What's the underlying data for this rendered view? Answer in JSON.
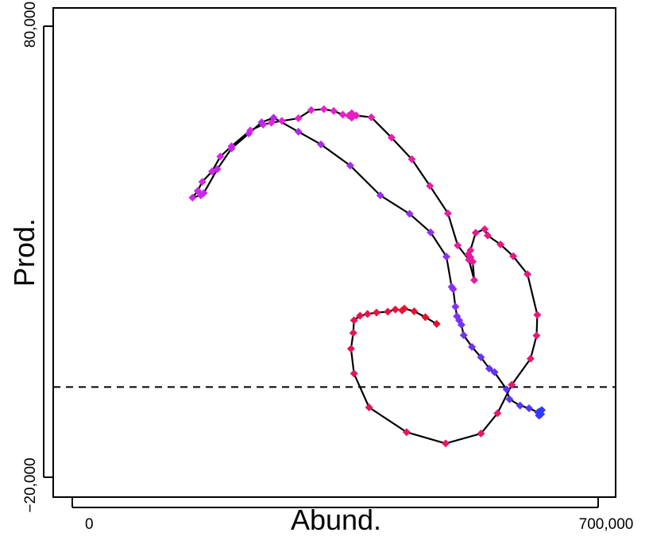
{
  "chart_data": {
    "type": "scatter",
    "title": "",
    "xlabel": "Abund.",
    "ylabel": "Prod.",
    "xlim": [
      -4000,
      700000
    ],
    "ylim": [
      -20000,
      80000
    ],
    "x_ticks": [
      0,
      700000
    ],
    "x_tick_labels": [
      "0",
      "700,000"
    ],
    "y_ticks": [
      -20000,
      80000
    ],
    "y_tick_labels": [
      "−20,000",
      "80,000"
    ],
    "reference_line": {
      "y": 0,
      "style": "dashed"
    },
    "grid": false,
    "legend": "none",
    "connected": true,
    "colors": {
      "start": "#e8102a",
      "middle": "#e524e6",
      "end": "#2a3cff",
      "line": "#000000"
    },
    "series": [
      {
        "points": [
          [
            485000,
            14000
          ],
          [
            470000,
            15500
          ],
          [
            455000,
            16800
          ],
          [
            442000,
            17400
          ],
          [
            439000,
            17000
          ],
          [
            430000,
            17200
          ],
          [
            420000,
            16700
          ],
          [
            405000,
            16500
          ],
          [
            393000,
            16200
          ],
          [
            383000,
            15800
          ],
          [
            375000,
            14800
          ],
          [
            374000,
            12000
          ],
          [
            371000,
            8500
          ],
          [
            375000,
            3000
          ],
          [
            395000,
            -4500
          ],
          [
            445000,
            -10000
          ],
          [
            497000,
            -12500
          ],
          [
            544000,
            -10300
          ],
          [
            566000,
            -5800
          ],
          [
            585000,
            500
          ],
          [
            610000,
            6300
          ],
          [
            618000,
            11400
          ],
          [
            619000,
            16000
          ],
          [
            606000,
            25000
          ],
          [
            587000,
            29000
          ],
          [
            570000,
            31600
          ],
          [
            553000,
            33600
          ],
          [
            549000,
            35000
          ],
          [
            537000,
            34200
          ],
          [
            530000,
            30300
          ],
          [
            527000,
            29400
          ],
          [
            530000,
            28800
          ],
          [
            533000,
            27800
          ],
          [
            535000,
            23700
          ],
          [
            528000,
            28200
          ],
          [
            513000,
            31400
          ],
          [
            500000,
            38500
          ],
          [
            476000,
            44600
          ],
          [
            452000,
            50500
          ],
          [
            425000,
            55300
          ],
          [
            398000,
            59800
          ],
          [
            378000,
            60200
          ],
          [
            372000,
            60700
          ],
          [
            368000,
            60200
          ],
          [
            372000,
            59700
          ],
          [
            360000,
            60400
          ],
          [
            348000,
            61200
          ],
          [
            335000,
            61600
          ],
          [
            318000,
            61400
          ],
          [
            301000,
            59600
          ],
          [
            279000,
            59000
          ],
          [
            265000,
            58600
          ],
          [
            254000,
            58200
          ],
          [
            237000,
            56900
          ],
          [
            212000,
            53400
          ],
          [
            197000,
            51100
          ],
          [
            186000,
            47800
          ],
          [
            173000,
            45500
          ],
          [
            167000,
            43500
          ],
          [
            160000,
            42000
          ],
          [
            171000,
            42500
          ],
          [
            175000,
            43000
          ],
          [
            193000,
            48300
          ],
          [
            212000,
            52900
          ],
          [
            235000,
            56200
          ],
          [
            252000,
            58700
          ],
          [
            268000,
            59700
          ],
          [
            301000,
            56600
          ],
          [
            331000,
            53800
          ],
          [
            370000,
            49100
          ],
          [
            410000,
            42500
          ],
          [
            449000,
            38400
          ],
          [
            477000,
            34300
          ],
          [
            498000,
            28900
          ],
          [
            505000,
            22200
          ],
          [
            507000,
            21700
          ],
          [
            510000,
            17800
          ],
          [
            512000,
            15700
          ],
          [
            515000,
            14800
          ],
          [
            518000,
            13800
          ],
          [
            521000,
            11500
          ],
          [
            532000,
            8900
          ],
          [
            544000,
            6600
          ],
          [
            555000,
            4100
          ],
          [
            562000,
            3300
          ],
          [
            578000,
            -500
          ],
          [
            582000,
            -2700
          ],
          [
            596000,
            -4100
          ],
          [
            608000,
            -4700
          ],
          [
            620000,
            -5600
          ],
          [
            621000,
            -6300
          ],
          [
            622000,
            -6300
          ],
          [
            623000,
            -6000
          ],
          [
            622000,
            -5800
          ],
          [
            622000,
            -5600
          ],
          [
            622000,
            -5400
          ],
          [
            625000,
            -5100
          ],
          [
            624000,
            -6000
          ]
        ]
      }
    ]
  }
}
